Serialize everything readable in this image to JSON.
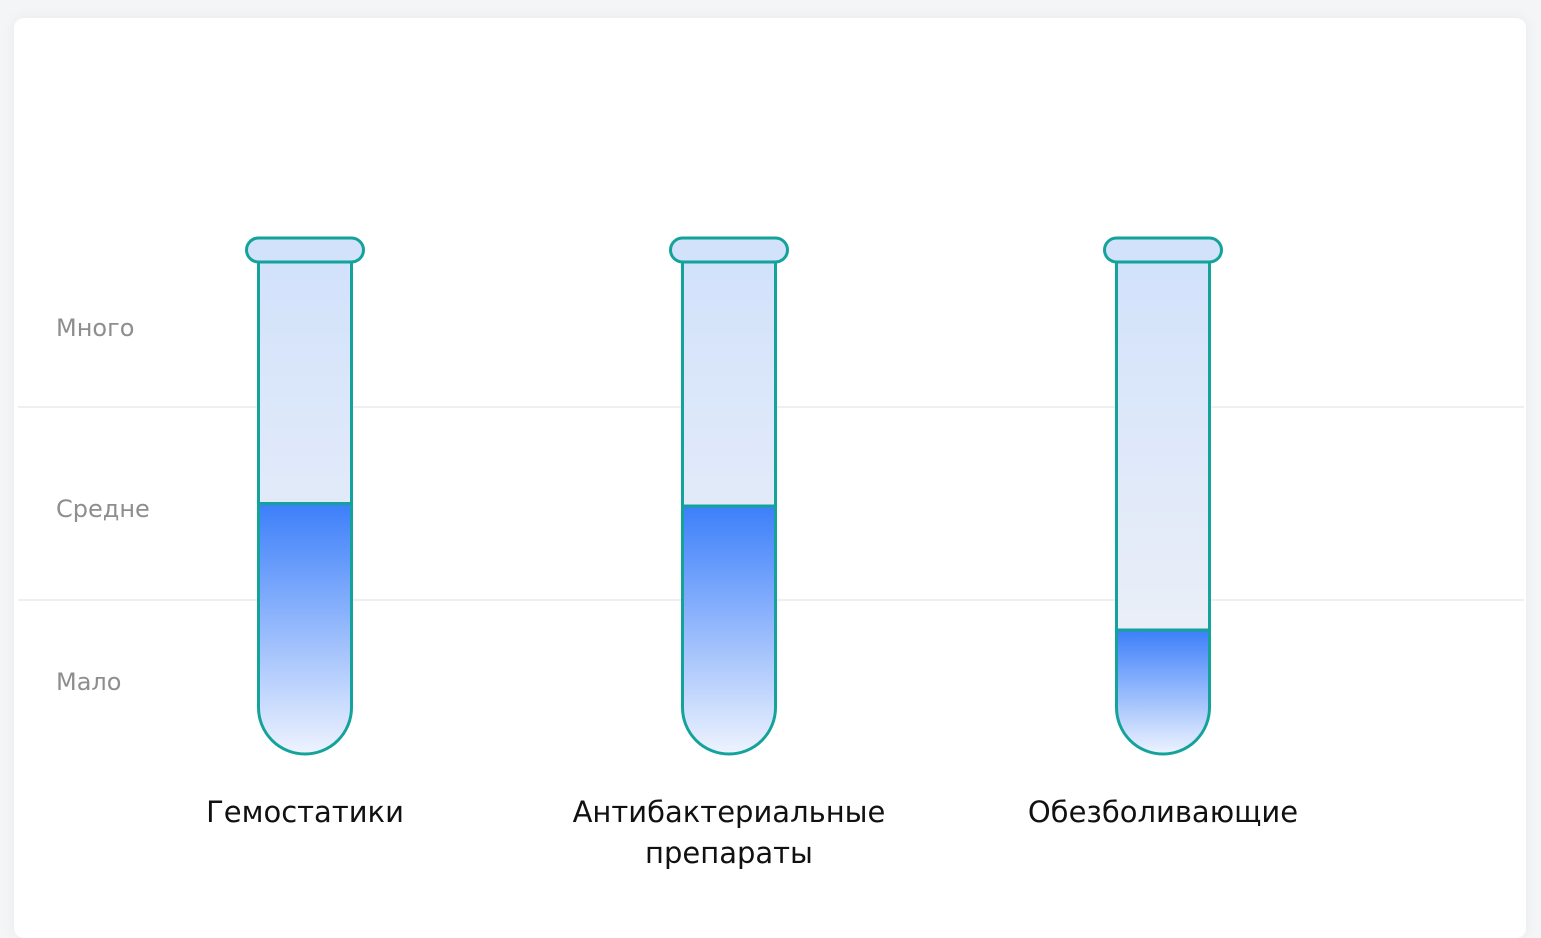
{
  "chart_data": {
    "type": "bar",
    "levels": [
      "Много",
      "Средне",
      "Мало"
    ],
    "categories": [
      {
        "lines": [
          "Гемостатики"
        ]
      },
      {
        "lines": [
          "Антибактериальные",
          "препараты"
        ]
      },
      {
        "lines": [
          "Обезболивающие"
        ]
      }
    ],
    "values": [
      0.505,
      0.5,
      0.25
    ],
    "ylim": [
      0,
      1
    ],
    "grid": true,
    "colors": {
      "tube_stroke": "#14a39b",
      "tube_bg_top": "#d2e2fb",
      "tube_bg_bottom": "#f2f3f7",
      "fill_top": "#3c7ffa",
      "fill_bottom": "#eef3fe",
      "grid": "#efefef",
      "level_text": "#8e8e8e",
      "category_text": "#111111"
    }
  }
}
